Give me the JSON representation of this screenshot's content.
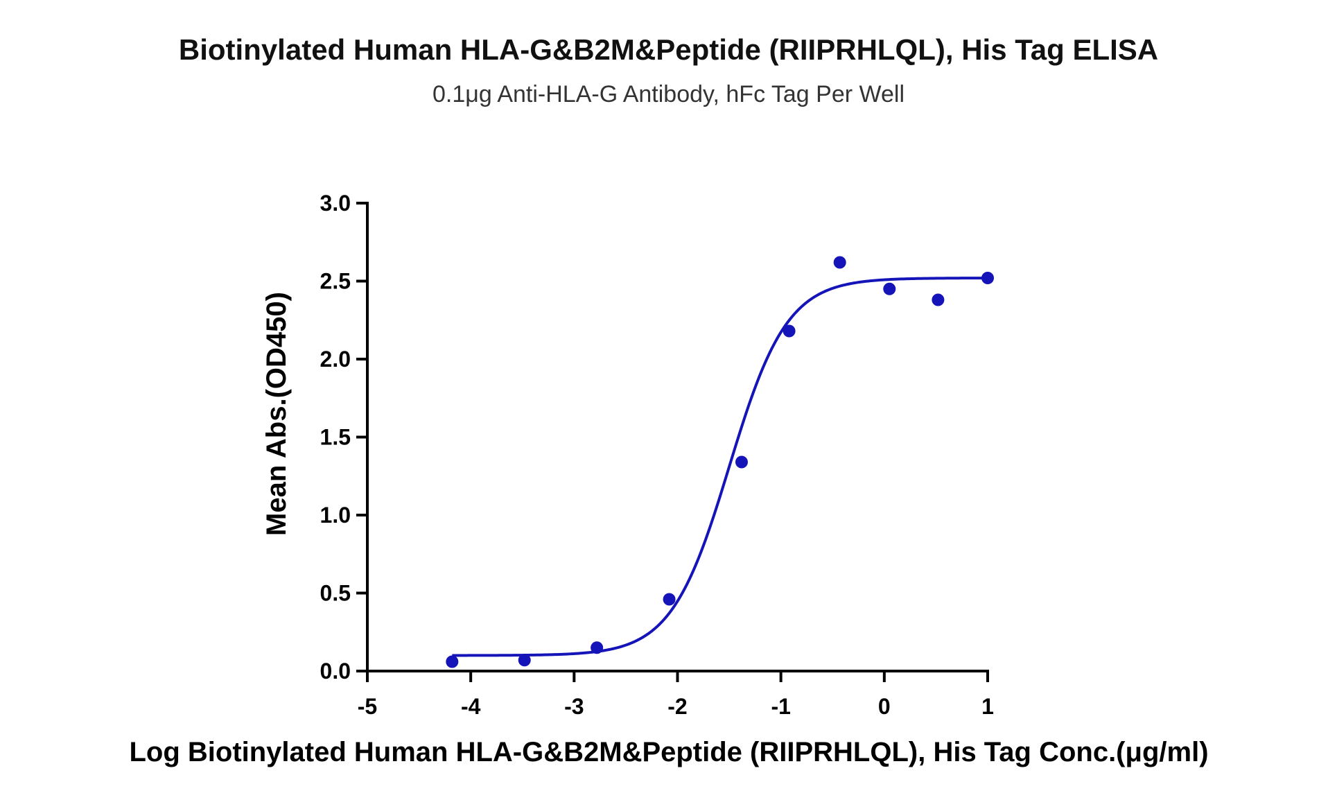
{
  "chart_data": {
    "type": "scatter",
    "title": "Biotinylated Human HLA-G&B2M&Peptide (RIIPRHLQL), His Tag ELISA",
    "subtitle": "0.1μg Anti-HLA-G Antibody, hFc Tag Per Well",
    "xlabel": "Log Biotinylated Human HLA-G&B2M&Peptide (RIIPRHLQL), His Tag Conc.(μg/ml)",
    "ylabel": "Mean Abs.(OD450)",
    "xlim": [
      -5,
      1
    ],
    "ylim": [
      0,
      3.0
    ],
    "x_ticks": [
      "-5",
      "-4",
      "-3",
      "-2",
      "-1",
      "0",
      "1"
    ],
    "y_ticks": [
      "0.0",
      "0.5",
      "1.0",
      "1.5",
      "2.0",
      "2.5",
      "3.0"
    ],
    "grid": false,
    "color": "#1414b8",
    "series": [
      {
        "points": [
          {
            "x": -4.18,
            "y": 0.06
          },
          {
            "x": -3.48,
            "y": 0.07
          },
          {
            "x": -2.78,
            "y": 0.15
          },
          {
            "x": -2.08,
            "y": 0.46
          },
          {
            "x": -1.38,
            "y": 1.34
          },
          {
            "x": -0.92,
            "y": 2.18
          },
          {
            "x": -0.43,
            "y": 2.62
          },
          {
            "x": 0.05,
            "y": 2.45
          },
          {
            "x": 0.52,
            "y": 2.38
          },
          {
            "x": 1.0,
            "y": 2.52
          }
        ],
        "fit": {
          "model": "four-parameter logistic",
          "bottom": 0.1,
          "top": 2.52,
          "log_ec50": -1.5,
          "hill_slope": 1.55,
          "x_range": [
            -4.18,
            1.0
          ]
        }
      }
    ]
  }
}
